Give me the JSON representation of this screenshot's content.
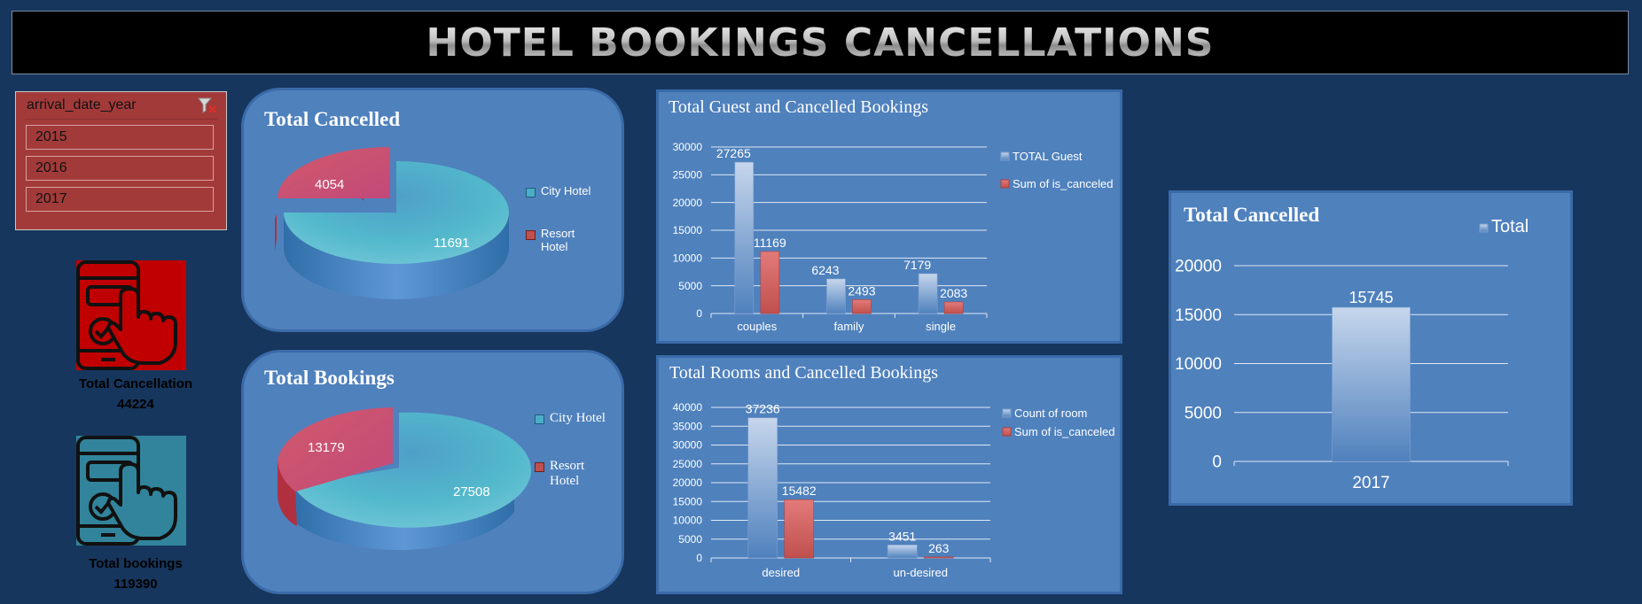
{
  "header": {
    "title": "HOTEL BOOKINGS CANCELLATIONS"
  },
  "slicer": {
    "field": "arrival_date_year",
    "clear_icon": "clear-filter-icon",
    "items": [
      "2015",
      "2016",
      "2017"
    ]
  },
  "kpis": {
    "cancellation": {
      "label": "Total Cancellation",
      "value": "44224",
      "icon": "phone-touch-icon",
      "color": "#c00000"
    },
    "bookings": {
      "label": "Total bookings",
      "value": "119390",
      "icon": "phone-touch-icon",
      "color": "#31849b"
    }
  },
  "colors": {
    "background": "#17365d",
    "panel": "#4f81bd",
    "city": "#4bacc6",
    "resort": "#c0504d",
    "slicer": "#a33a3a"
  },
  "chart_data": [
    {
      "id": "pie_cancelled",
      "type": "pie",
      "title": "Total Cancelled",
      "categories": [
        "City Hotel",
        "Resort Hotel"
      ],
      "values": [
        11691,
        4054
      ],
      "legend": "right"
    },
    {
      "id": "pie_bookings",
      "type": "pie",
      "title": "Total Bookings",
      "categories": [
        "City Hotel",
        "Resort Hotel"
      ],
      "values": [
        27508,
        13179
      ],
      "legend": "right"
    },
    {
      "id": "bar_guest",
      "type": "bar",
      "title": "Total Guest and Cancelled Bookings",
      "categories": [
        "couples",
        "family",
        "single"
      ],
      "series": [
        {
          "name": "TOTAL Guest",
          "values": [
            27265,
            6243,
            7179
          ]
        },
        {
          "name": "Sum of is_canceled",
          "values": [
            11169,
            2493,
            2083
          ]
        }
      ],
      "yticks": [
        "0",
        "5000",
        "10000",
        "15000",
        "20000",
        "25000",
        "30000"
      ],
      "ylim": [
        0,
        30000
      ],
      "grid": true,
      "legend": "right"
    },
    {
      "id": "bar_rooms",
      "type": "bar",
      "title": "Total Rooms and Cancelled Bookings",
      "categories": [
        "desired",
        "un-desired"
      ],
      "series": [
        {
          "name": "Count of room",
          "values": [
            37236,
            3451
          ]
        },
        {
          "name": "Sum of is_canceled",
          "values": [
            15482,
            263
          ]
        }
      ],
      "yticks": [
        "0",
        "5000",
        "10000",
        "15000",
        "20000",
        "25000",
        "30000",
        "35000",
        "40000"
      ],
      "ylim": [
        0,
        40000
      ],
      "grid": true,
      "legend": "right"
    },
    {
      "id": "bar_total",
      "type": "bar",
      "title": "Total Cancelled",
      "categories": [
        "2017"
      ],
      "series": [
        {
          "name": "Total",
          "values": [
            15745
          ]
        }
      ],
      "yticks": [
        "0",
        "5000",
        "10000",
        "15000",
        "20000"
      ],
      "ylim": [
        0,
        20000
      ],
      "grid": true,
      "legend": "top-right"
    }
  ]
}
